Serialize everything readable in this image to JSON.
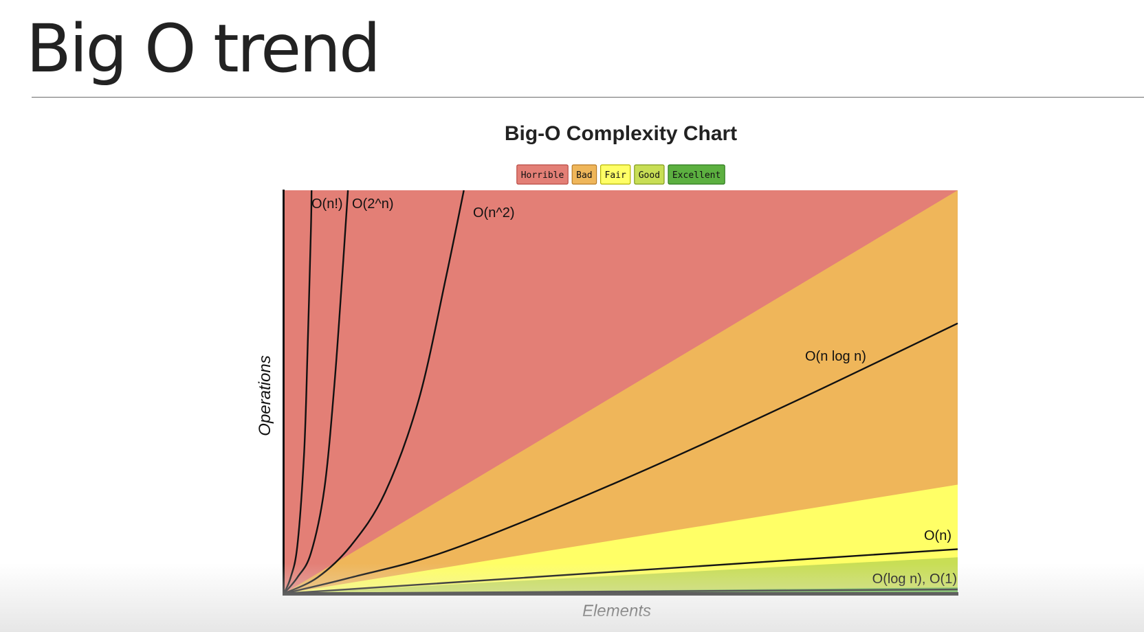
{
  "slide": {
    "title": "Big O trend"
  },
  "chart_data": {
    "type": "area",
    "title": "Big-O Complexity Chart",
    "xlabel": "Elements",
    "ylabel": "Operations",
    "xlim": [
      0,
      100
    ],
    "ylim": [
      0,
      100
    ],
    "legend_position": "top-center",
    "legend": [
      {
        "label": "Horrible",
        "color": "#e37f76",
        "border": "#b94b44"
      },
      {
        "label": "Bad",
        "color": "#efb65a",
        "border": "#b77a26"
      },
      {
        "label": "Fair",
        "color": "#ffff66",
        "border": "#b3b300"
      },
      {
        "label": "Good",
        "color": "#c8de55",
        "border": "#7f9a1c"
      },
      {
        "label": "Excellent",
        "color": "#5cb040",
        "border": "#2e7a1f"
      }
    ],
    "zones": [
      {
        "name": "Horrible",
        "color": "#e37f76",
        "upper_at_x100": 100
      },
      {
        "name": "Bad",
        "color": "#efb65a",
        "upper_at_x100": 100
      },
      {
        "name": "Fair",
        "color": "#ffff66",
        "upper_at_x100": 27
      },
      {
        "name": "Good",
        "color": "#c8de55",
        "upper_at_x100": 9
      },
      {
        "name": "Excellent",
        "color": "#5cb040",
        "upper_at_x100": 1.5
      }
    ],
    "series": [
      {
        "name": "O(n!)",
        "x": [
          0,
          1,
          2,
          3,
          3.5,
          4,
          4.1
        ],
        "y": [
          0,
          4,
          12,
          35,
          60,
          90,
          100
        ]
      },
      {
        "name": "O(2^n)",
        "x": [
          0,
          2,
          4,
          6,
          7.5,
          8.7,
          9.5
        ],
        "y": [
          0,
          4,
          10,
          26,
          52,
          80,
          100
        ]
      },
      {
        "name": "O(n^2)",
        "x": [
          0,
          5,
          10,
          15,
          20,
          24,
          26.7
        ],
        "y": [
          0,
          4,
          12,
          25,
          48,
          78,
          100
        ]
      },
      {
        "name": "O(n log n)",
        "x": [
          0,
          10,
          25,
          50,
          75,
          100
        ],
        "y": [
          0,
          4,
          11,
          28,
          47,
          67
        ]
      },
      {
        "name": "O(n)",
        "x": [
          0,
          100
        ],
        "y": [
          0,
          11
        ]
      },
      {
        "name": "O(log n), O(1)",
        "x": [
          0,
          100
        ],
        "y": [
          0,
          1
        ]
      }
    ]
  }
}
